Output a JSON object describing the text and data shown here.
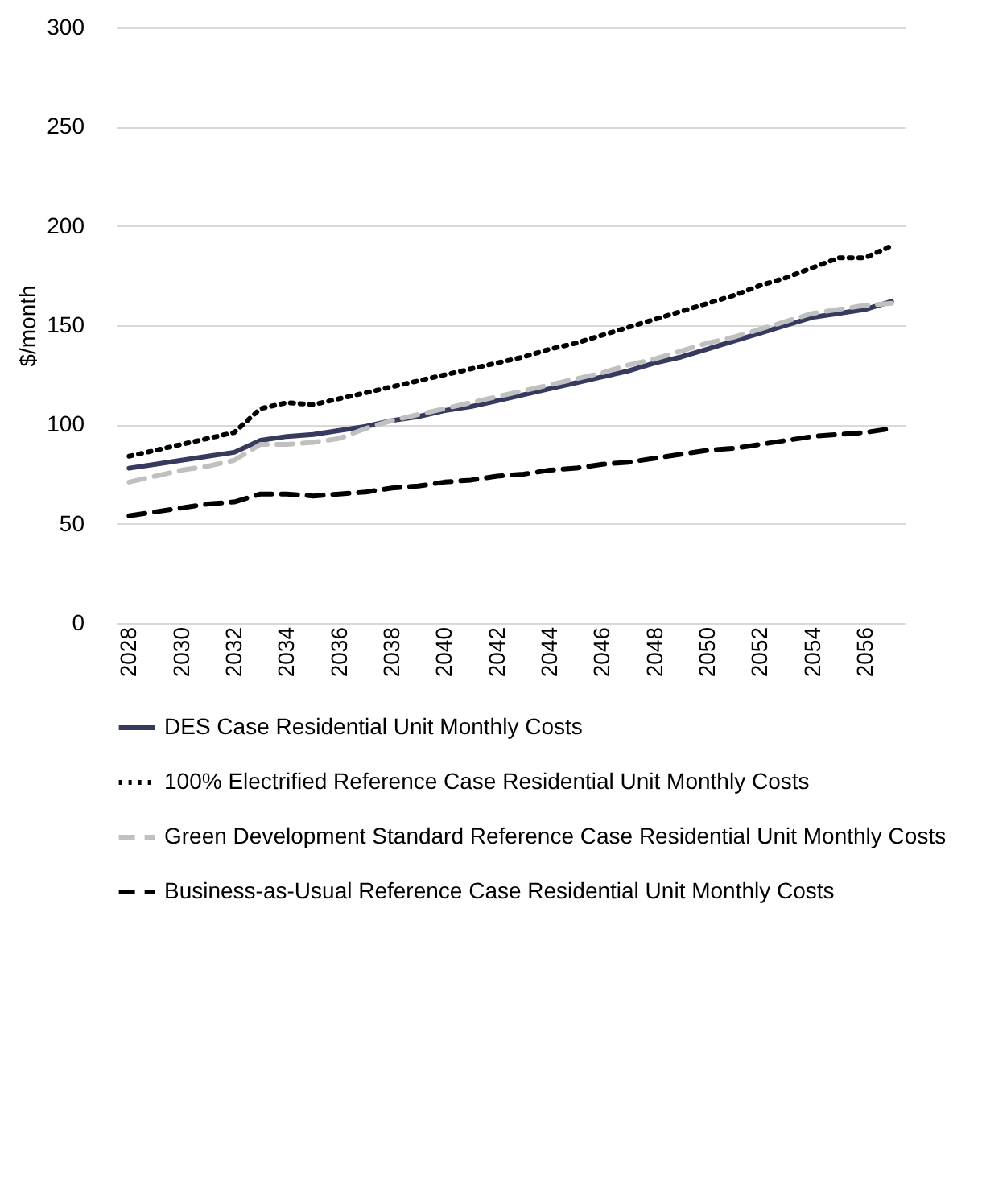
{
  "chart_data": {
    "type": "line",
    "ylabel": "$/month",
    "categories": [
      "2028",
      null,
      "2030",
      null,
      "2032",
      null,
      "2034",
      null,
      "2036",
      null,
      "2038",
      null,
      "2040",
      null,
      "2042",
      null,
      "2044",
      null,
      "2046",
      null,
      "2048",
      null,
      "2050",
      null,
      "2052",
      null,
      "2054",
      null,
      "2056",
      null
    ],
    "series": [
      {
        "name": "DES Case Residential Unit Monthly Costs",
        "color": "#363a5f",
        "line_style": "solid",
        "values": [
          78,
          80,
          82,
          84,
          86,
          92,
          94,
          95,
          97,
          99,
          102,
          104,
          107,
          109,
          112,
          115,
          118,
          121,
          124,
          127,
          131,
          134,
          138,
          142,
          146,
          150,
          154,
          156,
          158,
          162
        ]
      },
      {
        "name": "100% Electrified Reference Case Residential Unit Monthly Costs",
        "color": "#000000",
        "line_style": "dotted",
        "values": [
          84,
          87,
          90,
          93,
          96,
          108,
          111,
          110,
          113,
          116,
          119,
          122,
          125,
          128,
          131,
          134,
          138,
          141,
          145,
          149,
          153,
          157,
          161,
          165,
          170,
          174,
          179,
          184,
          184,
          190
        ]
      },
      {
        "name": "Green Development Standard Reference Case Residential Unit Monthly Costs",
        "color": "#c0c0c0",
        "line_style": "dashed",
        "values": [
          71,
          74,
          77,
          79,
          82,
          90,
          90,
          91,
          93,
          98,
          102,
          105,
          108,
          111,
          114,
          117,
          120,
          123,
          126,
          130,
          133,
          137,
          141,
          144,
          148,
          152,
          156,
          158,
          160,
          161
        ]
      },
      {
        "name": "Business-as-Usual Reference Case Residential Unit Monthly Costs",
        "color": "#000000",
        "line_style": "dashed",
        "values": [
          54,
          56,
          58,
          60,
          61,
          65,
          65,
          64,
          65,
          66,
          68,
          69,
          71,
          72,
          74,
          75,
          77,
          78,
          80,
          81,
          83,
          85,
          87,
          88,
          90,
          92,
          94,
          95,
          96,
          98
        ]
      }
    ],
    "ylim": [
      0,
      300
    ],
    "yticks": [
      0,
      50,
      100,
      150,
      200,
      250,
      300
    ],
    "grid": "y",
    "legend": "bottom"
  }
}
